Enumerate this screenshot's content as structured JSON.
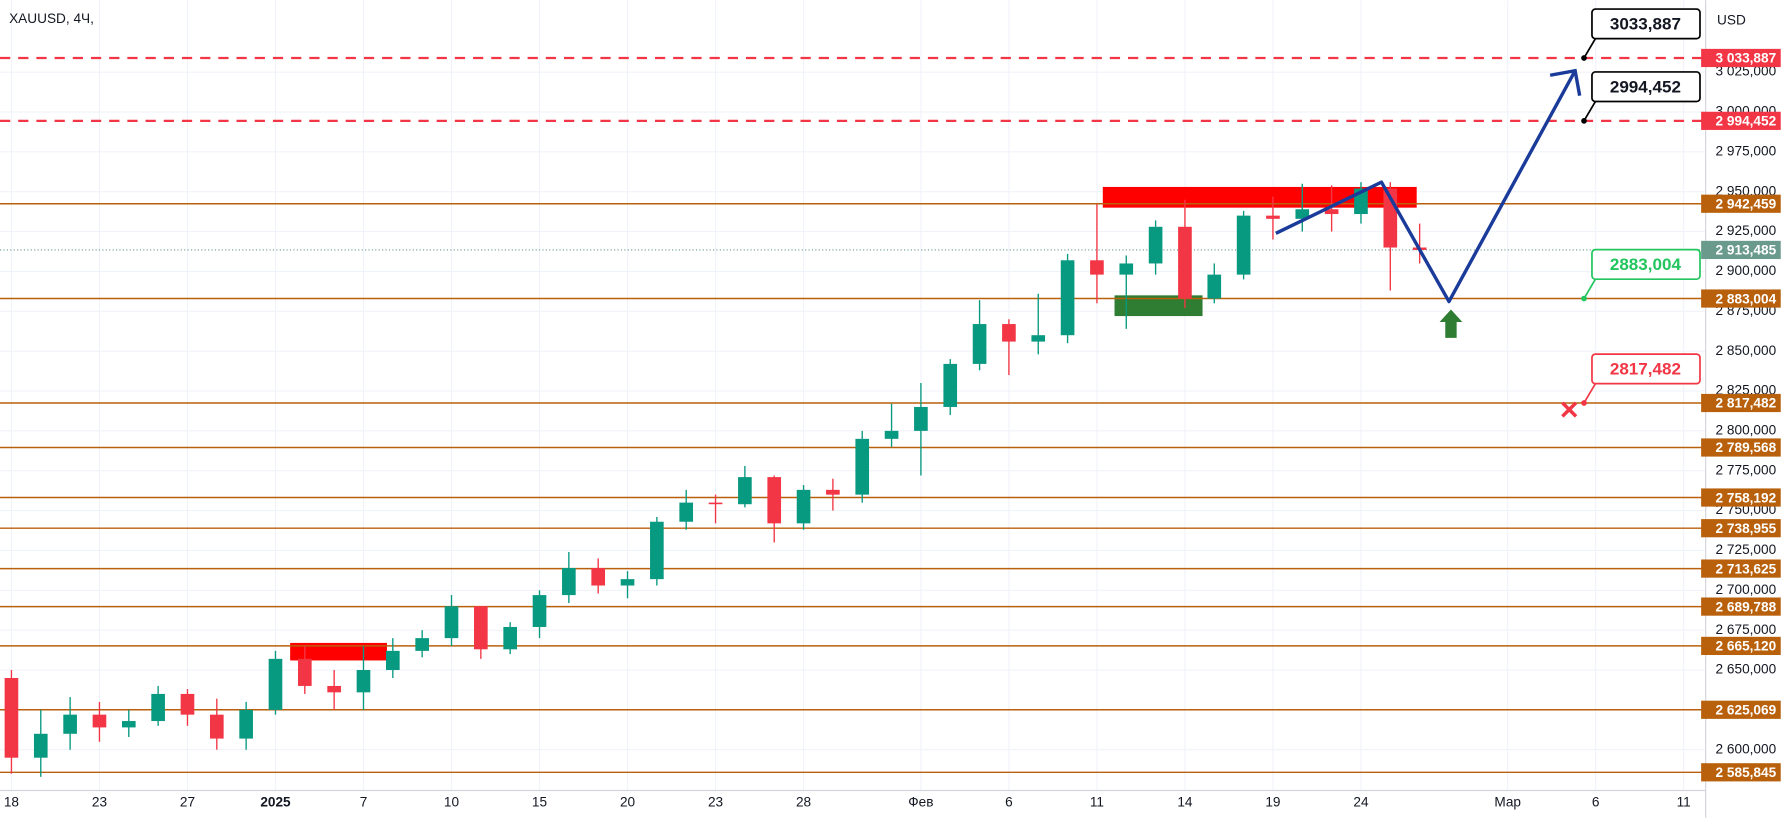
{
  "chart_data": {
    "type": "candlestick",
    "title": "XAUUSD, 4Ч,",
    "currency": "USD",
    "x": [
      0,
      1,
      2,
      3,
      4,
      5,
      6,
      7,
      8,
      9,
      10,
      11,
      12,
      13,
      14,
      15,
      16,
      17,
      18,
      19,
      20,
      21,
      22,
      23,
      24,
      25,
      26,
      27,
      28,
      29,
      30,
      31,
      32,
      33,
      34,
      35,
      36,
      37,
      38,
      39,
      40,
      41,
      42,
      43,
      44,
      45,
      46,
      47,
      48
    ],
    "open": [
      2645,
      2595,
      2610,
      2622,
      2614,
      2618,
      2635,
      2622,
      2607,
      2625,
      2657,
      2640,
      2636,
      2650,
      2662,
      2670,
      2690,
      2663,
      2677,
      2697,
      2714,
      2703,
      2707,
      2743,
      2755,
      2754,
      2771,
      2742,
      2763,
      2760,
      2795,
      2800,
      2815,
      2842,
      2867,
      2856,
      2860,
      2907,
      2898,
      2905,
      2928,
      2883,
      2898,
      2935,
      2933,
      2939,
      2936,
      2952,
      2915
    ],
    "high": [
      2650,
      2625,
      2633,
      2630,
      2625,
      2640,
      2638,
      2632,
      2630,
      2662,
      2665,
      2650,
      2665,
      2670,
      2675,
      2697,
      2690,
      2680,
      2700,
      2724,
      2720,
      2712,
      2746,
      2763,
      2760,
      2778,
      2772,
      2766,
      2770,
      2800,
      2817,
      2830,
      2845,
      2882,
      2870,
      2886,
      2911,
      2942,
      2910,
      2932,
      2945,
      2905,
      2938,
      2947,
      2955,
      2954,
      2956,
      2956,
      2930
    ],
    "low": [
      2585,
      2583,
      2600,
      2605,
      2608,
      2615,
      2615,
      2600,
      2600,
      2622,
      2635,
      2625,
      2625,
      2645,
      2658,
      2665,
      2657,
      2660,
      2670,
      2692,
      2698,
      2695,
      2703,
      2738,
      2742,
      2752,
      2730,
      2738,
      2750,
      2755,
      2790,
      2772,
      2810,
      2838,
      2835,
      2848,
      2855,
      2880,
      2864,
      2898,
      2877,
      2880,
      2895,
      2920,
      2925,
      2925,
      2930,
      2888,
      2905
    ],
    "close": [
      2595,
      2610,
      2622,
      2614,
      2618,
      2635,
      2622,
      2607,
      2625,
      2657,
      2640,
      2636,
      2650,
      2662,
      2670,
      2690,
      2663,
      2677,
      2697,
      2714,
      2703,
      2707,
      2743,
      2755,
      2754,
      2771,
      2742,
      2763,
      2760,
      2795,
      2800,
      2815,
      2842,
      2867,
      2856,
      2860,
      2907,
      2898,
      2905,
      2928,
      2883,
      2898,
      2935,
      2933,
      2939,
      2936,
      2952,
      2915,
      2913.485
    ],
    "up_color": "#089981",
    "down_color": "#f23645",
    "xlim": [
      -0.39,
      57.75
    ],
    "ylim": [
      2574.43,
      3070.12
    ],
    "grid": true,
    "xticks": [
      {
        "value": 0,
        "label": "18"
      },
      {
        "value": 3,
        "label": "23"
      },
      {
        "value": 6,
        "label": "27"
      },
      {
        "value": 9,
        "label": "2025"
      },
      {
        "value": 12,
        "label": "7"
      },
      {
        "value": 15,
        "label": "10"
      },
      {
        "value": 18,
        "label": "15"
      },
      {
        "value": 21,
        "label": "20"
      },
      {
        "value": 24,
        "label": "23"
      },
      {
        "value": 27,
        "label": "28"
      },
      {
        "value": 31,
        "label": "Фев"
      },
      {
        "value": 34,
        "label": "6"
      },
      {
        "value": 37,
        "label": "11"
      },
      {
        "value": 40,
        "label": "14"
      },
      {
        "value": 43,
        "label": "19"
      },
      {
        "value": 46,
        "label": "24"
      },
      {
        "value": 51,
        "label": "Мар"
      },
      {
        "value": 54,
        "label": "6"
      },
      {
        "value": 57,
        "label": "11"
      }
    ],
    "yticks": [
      {
        "value": 3025,
        "label": "3 025,000"
      },
      {
        "value": 3000,
        "label": "3 000,000"
      },
      {
        "value": 2975,
        "label": "2 975,000"
      },
      {
        "value": 2950,
        "label": "2 950,000"
      },
      {
        "value": 2925,
        "label": "2 925,000"
      },
      {
        "value": 2900,
        "label": "2 900,000"
      },
      {
        "value": 2875,
        "label": "2 875,000"
      },
      {
        "value": 2850,
        "label": "2 850,000"
      },
      {
        "value": 2825,
        "label": "2 825,000"
      },
      {
        "value": 2800,
        "label": "2 800,000"
      },
      {
        "value": 2775,
        "label": "2 775,000"
      },
      {
        "value": 2750,
        "label": "2 750,000"
      },
      {
        "value": 2725,
        "label": "2 725,000"
      },
      {
        "value": 2700,
        "label": "2 700,000"
      },
      {
        "value": 2675,
        "label": "2 675,000"
      },
      {
        "value": 2650,
        "label": "2 650,000"
      },
      {
        "value": 2600,
        "label": "2 600,000"
      }
    ],
    "levels": [
      {
        "value": 3033.887,
        "label": "3 033,887",
        "color": "#f23645",
        "dashed": true
      },
      {
        "value": 2994.452,
        "label": "2 994,452",
        "color": "#f23645",
        "dashed": true
      },
      {
        "value": 2942.459,
        "label": "2 942,459",
        "color": "#b8600b",
        "dashed": false
      },
      {
        "value": 2883.004,
        "label": "2 883,004",
        "color": "#b8600b",
        "dashed": false
      },
      {
        "value": 2817.482,
        "label": "2 817,482",
        "color": "#b8600b",
        "dashed": false
      },
      {
        "value": 2789.568,
        "label": "2 789,568",
        "color": "#b8600b",
        "dashed": false
      },
      {
        "value": 2758.192,
        "label": "2 758,192",
        "color": "#b8600b",
        "dashed": false
      },
      {
        "value": 2738.955,
        "label": "2 738,955",
        "color": "#b8600b",
        "dashed": false
      },
      {
        "value": 2713.625,
        "label": "2 713,625",
        "color": "#b8600b",
        "dashed": false
      },
      {
        "value": 2689.788,
        "label": "2 689,788",
        "color": "#b8600b",
        "dashed": false
      },
      {
        "value": 2665.12,
        "label": "2 665,120",
        "color": "#b8600b",
        "dashed": false
      },
      {
        "value": 2625.069,
        "label": "2 625,069",
        "color": "#b8600b",
        "dashed": false
      },
      {
        "value": 2585.845,
        "label": "2 585,845",
        "color": "#b8600b",
        "dashed": false
      }
    ],
    "last_price": {
      "value": 2913.485,
      "label": "2 913,485",
      "color": "#6a9a8b"
    },
    "zones": [
      {
        "x": [
          9.5,
          12.8
        ],
        "y": [
          2656,
          2667
        ],
        "color": "#ff0000"
      },
      {
        "x": [
          37.2,
          47.9
        ],
        "y": [
          2940,
          2953
        ],
        "color": "#ff0000"
      },
      {
        "x": [
          37.6,
          40.6
        ],
        "y": [
          2872,
          2885
        ],
        "color": "#2e7d32"
      }
    ],
    "projection": {
      "x": [
        43.1,
        46.7,
        49.0,
        53.3
      ],
      "y": [
        2923.9,
        2956.0,
        2881.1,
        3025.9
      ],
      "color": "#1a3b9a"
    },
    "callouts": [
      {
        "value": 3033.887,
        "label": "3033,887",
        "color": "#000000"
      },
      {
        "value": 2994.452,
        "label": "2994,452",
        "color": "#000000"
      },
      {
        "value": 2883.004,
        "label": "2883,004",
        "color": "#22c55e"
      },
      {
        "value": 2817.482,
        "label": "2817,482",
        "color": "#f23645"
      }
    ]
  }
}
